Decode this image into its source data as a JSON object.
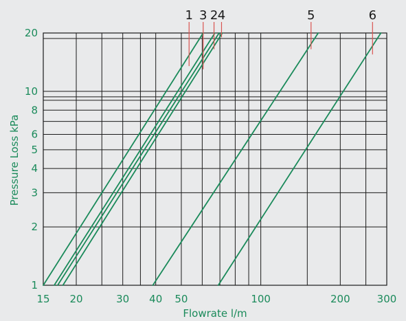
{
  "colors": {
    "background": "#e9eaeb",
    "grid": "#1a1a1a",
    "series": "#1a8a5a",
    "label_text": "#1a8a5a",
    "callout_line": "#d9534f",
    "callout_text": "#1a1a1a"
  },
  "chart_data": {
    "type": "line",
    "xlabel": "Flowrate l/m",
    "ylabel": "Pressure Loss kPa",
    "x_scale": "log",
    "y_scale": "log",
    "xlim": [
      15,
      300
    ],
    "ylim": [
      1,
      20
    ],
    "x_tick_labels": [
      {
        "value": 15,
        "label": "15"
      },
      {
        "value": 20,
        "label": "20"
      },
      {
        "value": 30,
        "label": "30"
      },
      {
        "value": 40,
        "label": "40"
      },
      {
        "value": 50,
        "label": "50"
      },
      {
        "value": 100,
        "label": "100"
      },
      {
        "value": 200,
        "label": "200"
      },
      {
        "value": 300,
        "label": "300"
      }
    ],
    "x_grid_values": [
      15,
      20,
      25,
      30,
      35,
      40,
      50,
      60,
      70,
      80,
      90,
      100,
      150,
      200,
      250,
      300
    ],
    "y_tick_labels": [
      {
        "value": 1,
        "label": "1"
      },
      {
        "value": 2,
        "label": "2"
      },
      {
        "value": 3,
        "label": "3"
      },
      {
        "value": 4,
        "label": "4"
      },
      {
        "value": 5,
        "label": "5"
      },
      {
        "value": 6,
        "label": "6"
      },
      {
        "value": 8,
        "label": "8"
      },
      {
        "value": 10,
        "label": "10"
      },
      {
        "value": 20,
        "label": "20"
      }
    ],
    "y_grid_values": [
      1,
      2,
      3,
      4,
      5,
      6,
      7,
      8,
      9,
      10,
      20
    ],
    "grid": true,
    "series": [
      {
        "name": "1",
        "x": [
          15,
          60.5
        ],
        "y": [
          1,
          20
        ],
        "callout_at": {
          "x": 53.5,
          "y": 13.5
        }
      },
      {
        "name": "2",
        "x": [
          17,
          69.5
        ],
        "y": [
          1,
          20
        ],
        "callout_at": {
          "x": 66.5,
          "y": 16.5
        }
      },
      {
        "name": "3",
        "x": [
          16.5,
          67
        ],
        "y": [
          1,
          20
        ],
        "callout_at": {
          "x": 60.5,
          "y": 13
        }
      },
      {
        "name": "4",
        "x": [
          17.8,
          71.5
        ],
        "y": [
          1,
          20
        ],
        "callout_at": {
          "x": 71,
          "y": 19
        }
      },
      {
        "name": "5",
        "x": [
          39,
          165
        ],
        "y": [
          1,
          20
        ],
        "callout_at": {
          "x": 155,
          "y": 16.5
        }
      },
      {
        "name": "6",
        "x": [
          69,
          285
        ],
        "y": [
          1,
          20
        ],
        "callout_at": {
          "x": 265,
          "y": 15.5
        }
      }
    ]
  }
}
